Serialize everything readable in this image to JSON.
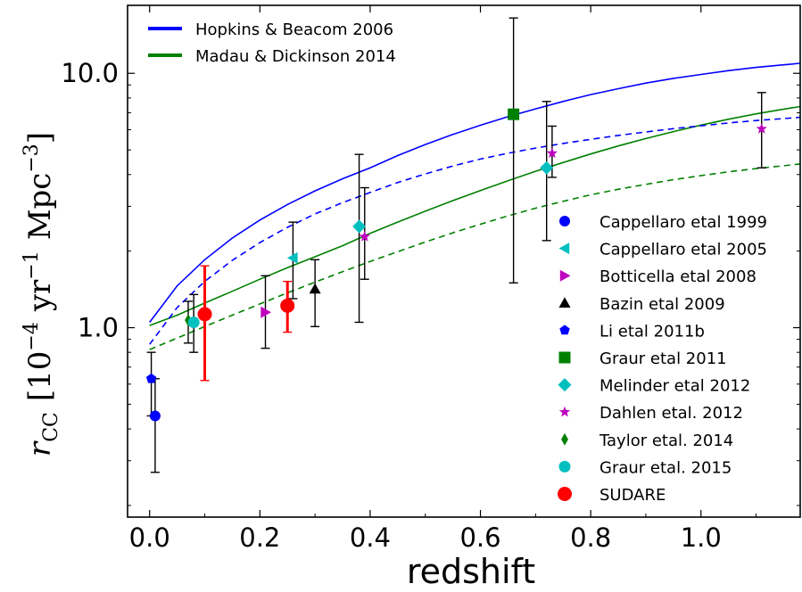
{
  "chart_data": {
    "type": "scatter",
    "xlabel": "redshift",
    "ylabel": "r_CC [10^-4 yr^-1 Mpc^-3]",
    "ylabel_parts": {
      "symbol": "r",
      "subscript": "CC",
      "bracket_open": "[",
      "base1": "10",
      "exp1": "−4",
      "unit1": "yr",
      "exp2": "−1",
      "unit2": "Mpc",
      "exp3": "−3",
      "bracket_close": "]"
    },
    "xlim": [
      -0.04,
      1.18
    ],
    "ylim": [
      0.18,
      18.5
    ],
    "yscale": "log",
    "grid": false,
    "x_ticks": [
      0.0,
      0.2,
      0.4,
      0.6,
      0.8,
      1.0
    ],
    "x_tick_labels": [
      "0.0",
      "0.2",
      "0.4",
      "0.6",
      "0.8",
      "1.0"
    ],
    "y_ticks": [
      1.0,
      10.0
    ],
    "y_tick_labels": [
      "1.0",
      "10.0"
    ],
    "line_legend_position": "top-left",
    "marker_legend_position": "center-right",
    "lines": [
      {
        "name": "Hopkins & Beacom 2006",
        "color": "#0000ff",
        "style": "solid",
        "legend": true,
        "x": [
          0.0,
          0.05,
          0.1,
          0.15,
          0.2,
          0.25,
          0.3,
          0.35,
          0.4,
          0.45,
          0.5,
          0.55,
          0.6,
          0.65,
          0.7,
          0.75,
          0.8,
          0.85,
          0.9,
          0.95,
          1.0,
          1.05,
          1.1,
          1.15,
          1.18
        ],
        "y": [
          1.05,
          1.46,
          1.85,
          2.25,
          2.65,
          3.05,
          3.45,
          3.85,
          4.25,
          4.75,
          5.25,
          5.75,
          6.25,
          6.75,
          7.25,
          7.75,
          8.25,
          8.7,
          9.15,
          9.55,
          9.9,
          10.25,
          10.55,
          10.8,
          10.95
        ]
      },
      {
        "name": "Madau & Dickinson 2014",
        "color": "#008000",
        "style": "solid",
        "legend": true,
        "x": [
          0.0,
          0.05,
          0.1,
          0.15,
          0.2,
          0.25,
          0.3,
          0.35,
          0.4,
          0.45,
          0.5,
          0.55,
          0.6,
          0.65,
          0.7,
          0.75,
          0.8,
          0.85,
          0.9,
          0.95,
          1.0,
          1.05,
          1.1,
          1.15,
          1.18
        ],
        "y": [
          1.02,
          1.12,
          1.25,
          1.39,
          1.55,
          1.72,
          1.9,
          2.1,
          2.35,
          2.6,
          2.87,
          3.16,
          3.46,
          3.78,
          4.12,
          4.46,
          4.82,
          5.18,
          5.54,
          5.9,
          6.26,
          6.6,
          6.93,
          7.23,
          7.4
        ]
      },
      {
        "name": "",
        "color": "#0000ff",
        "style": "dashed",
        "legend": false,
        "x": [
          0.0,
          0.05,
          0.1,
          0.15,
          0.2,
          0.25,
          0.3,
          0.35,
          0.4,
          0.45,
          0.5,
          0.55,
          0.6,
          0.65,
          0.7,
          0.75,
          0.8,
          0.85,
          0.9,
          0.95,
          1.0,
          1.05,
          1.1,
          1.15,
          1.18
        ],
        "y": [
          0.86,
          1.2,
          1.52,
          1.84,
          2.16,
          2.48,
          2.8,
          3.1,
          3.4,
          3.72,
          4.02,
          4.32,
          4.6,
          4.85,
          5.08,
          5.3,
          5.5,
          5.7,
          5.88,
          6.06,
          6.22,
          6.38,
          6.52,
          6.64,
          6.72
        ]
      },
      {
        "name": "",
        "color": "#008000",
        "style": "dashed",
        "legend": false,
        "x": [
          0.0,
          0.05,
          0.1,
          0.15,
          0.2,
          0.25,
          0.3,
          0.35,
          0.4,
          0.45,
          0.5,
          0.55,
          0.6,
          0.65,
          0.7,
          0.75,
          0.8,
          0.85,
          0.9,
          0.95,
          1.0,
          1.05,
          1.1,
          1.15,
          1.18
        ],
        "y": [
          0.82,
          0.91,
          1.01,
          1.12,
          1.24,
          1.37,
          1.51,
          1.66,
          1.82,
          1.99,
          2.17,
          2.36,
          2.55,
          2.75,
          2.95,
          3.14,
          3.33,
          3.5,
          3.66,
          3.82,
          3.96,
          4.1,
          4.22,
          4.33,
          4.4
        ]
      }
    ],
    "series": [
      {
        "name": "Cappellaro etal 1999",
        "marker": "circle",
        "color": "#0000ff",
        "size": 12,
        "err_color": "#000000",
        "points": [
          {
            "x": 0.01,
            "y": 0.45,
            "ylo": 0.27,
            "yhi": 0.63
          }
        ]
      },
      {
        "name": "Cappellaro etal 2005",
        "marker": "triangle-left",
        "color": "#00bfbf",
        "size": 13,
        "err_color": "#000000",
        "points": [
          {
            "x": 0.26,
            "y": 1.88,
            "ylo": 1.3,
            "yhi": 2.6
          }
        ]
      },
      {
        "name": "Botticella etal 2008",
        "marker": "triangle-right",
        "color": "#bf00bf",
        "size": 13,
        "err_color": "#000000",
        "points": [
          {
            "x": 0.21,
            "y": 1.15,
            "ylo": 0.83,
            "yhi": 1.6
          }
        ]
      },
      {
        "name": "Bazin etal 2009",
        "marker": "triangle-up",
        "color": "#000000",
        "size": 13,
        "err_color": "#000000",
        "points": [
          {
            "x": 0.3,
            "y": 1.42,
            "ylo": 1.01,
            "yhi": 1.85
          }
        ]
      },
      {
        "name": "Li etal 2011b",
        "marker": "pentagon",
        "color": "#0000ff",
        "size": 12,
        "err_color": "#000000",
        "points": [
          {
            "x": 0.003,
            "y": 0.63,
            "ylo": 0.45,
            "yhi": 0.8
          }
        ]
      },
      {
        "name": "Graur etal 2011",
        "marker": "square",
        "color": "#008000",
        "size": 13,
        "err_color": "#000000",
        "points": [
          {
            "x": 0.66,
            "y": 6.9,
            "ylo": 1.5,
            "yhi": 16.5
          }
        ]
      },
      {
        "name": "Melinder etal 2012",
        "marker": "diamond",
        "color": "#00bfbf",
        "size": 15,
        "err_color": "#000000",
        "points": [
          {
            "x": 0.38,
            "y": 2.5,
            "ylo": 1.05,
            "yhi": 4.8
          },
          {
            "x": 0.72,
            "y": 4.25,
            "ylo": 2.2,
            "yhi": 7.75
          }
        ]
      },
      {
        "name": "Dahlen etal. 2012",
        "marker": "star",
        "color": "#bf00bf",
        "size": 13,
        "err_color": "#000000",
        "points": [
          {
            "x": 0.39,
            "y": 2.28,
            "ylo": 1.55,
            "yhi": 3.55
          },
          {
            "x": 0.73,
            "y": 4.85,
            "ylo": 3.9,
            "yhi": 6.2
          },
          {
            "x": 1.11,
            "y": 6.05,
            "ylo": 4.25,
            "yhi": 8.4
          }
        ]
      },
      {
        "name": "Taylor etal. 2014",
        "marker": "thin-diamond",
        "color": "#008000",
        "size": 14,
        "err_color": "#000000",
        "points": [
          {
            "x": 0.07,
            "y": 1.07,
            "ylo": 0.87,
            "yhi": 1.27
          }
        ]
      },
      {
        "name": "Graur etal. 2015",
        "marker": "circle",
        "color": "#00bfbf",
        "size": 13,
        "err_color": "#000000",
        "points": [
          {
            "x": 0.08,
            "y": 1.05,
            "ylo": 0.8,
            "yhi": 1.35
          }
        ]
      },
      {
        "name": "SUDARE",
        "marker": "circle",
        "color": "#ff0000",
        "size": 16,
        "err_color": "#ff0000",
        "points": [
          {
            "x": 0.1,
            "y": 1.13,
            "ylo": 0.62,
            "yhi": 1.75
          },
          {
            "x": 0.25,
            "y": 1.22,
            "ylo": 0.96,
            "yhi": 1.52
          }
        ]
      }
    ]
  }
}
